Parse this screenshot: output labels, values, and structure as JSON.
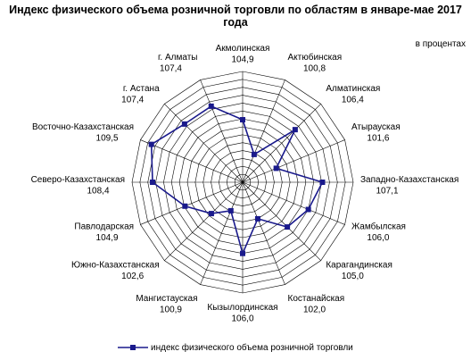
{
  "chart_data": {
    "type": "radar",
    "title": "Индекс физического объема розничной торговли по областям в январе-мае 2017 года",
    "unit": "в процентах",
    "rlim": [
      97,
      111
    ],
    "grid": true,
    "legend_position": "bottom",
    "categories": [
      "Акмолинская",
      "Актюбинская",
      "Алматинская",
      "Атырауская",
      "Западно-Казахстанская",
      "Жамбылская",
      "Карагандинская",
      "Костанайская",
      "Кызылординская",
      "Мангистауская",
      "Южно-Казахстанская",
      "Павлодарская",
      "Северо-Казахстанская",
      "Восточно-Казахстанская",
      "г. Астана",
      "г. Алматы"
    ],
    "value_labels": [
      "104,9",
      "100,8",
      "106,4",
      "101,6",
      "107,1",
      "106,0",
      "105,0",
      "102,0",
      "106,0",
      "100,9",
      "102,6",
      "104,9",
      "108,4",
      "109,5",
      "107,4",
      "107,4"
    ],
    "series": [
      {
        "name": "индекс физического объема розничной торговли",
        "color": "#1a1a8c",
        "values": [
          104.9,
          100.8,
          106.4,
          101.6,
          107.1,
          106.0,
          105.0,
          102.0,
          106.0,
          100.9,
          102.6,
          104.9,
          108.4,
          109.5,
          107.4,
          107.4
        ]
      }
    ]
  }
}
